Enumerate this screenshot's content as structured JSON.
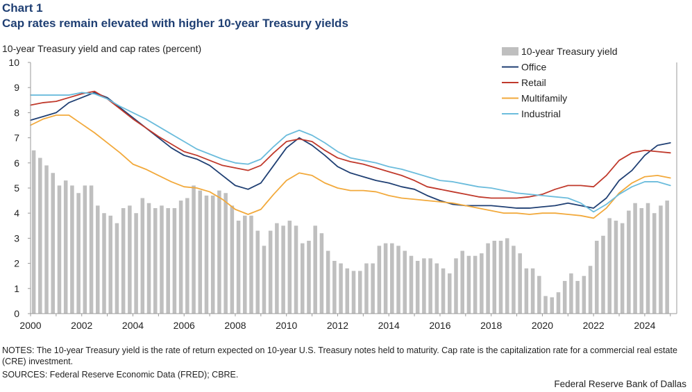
{
  "header": {
    "chart_number": "Chart 1",
    "title": "Cap rates remain elevated with higher 10-year Treasury yields"
  },
  "footer": {
    "notes": "NOTES: The 10-year Treasury yield is the rate of return expected on 10-year U.S. Treasury notes held to maturity. Cap rate is the capitalization rate for a commercial real estate (CRE) investment.",
    "sources": "SOURCES: Federal Reserve Economic Data (FRED); CBRE.",
    "credit": "Federal Reserve Bank of Dallas"
  },
  "chart_data": {
    "type": "bar",
    "title": "Cap rates remain elevated with higher 10-year Treasury yields",
    "ylabel": "10-year Treasury yield and cap rates (percent)",
    "xlabel": "",
    "xlim": [
      2000,
      2025.25
    ],
    "ylim": [
      0,
      10
    ],
    "x_ticks": [
      "2000",
      "2002",
      "2004",
      "2006",
      "2008",
      "2010",
      "2012",
      "2014",
      "2016",
      "2018",
      "2020",
      "2022",
      "2024"
    ],
    "y_ticks": [
      "0",
      "1",
      "2",
      "3",
      "4",
      "5",
      "6",
      "7",
      "8",
      "9",
      "10"
    ],
    "legend_position": "top-right",
    "bars": {
      "name": "10-year Treasury yield",
      "color": "#bfbfbf",
      "start": 2000.0,
      "step": 0.25,
      "values": [
        6.5,
        6.2,
        5.9,
        5.6,
        5.1,
        5.3,
        5.1,
        4.8,
        5.1,
        5.1,
        4.3,
        4.0,
        3.9,
        3.6,
        4.2,
        4.3,
        4.0,
        4.6,
        4.4,
        4.2,
        4.3,
        4.2,
        4.2,
        4.5,
        4.6,
        5.1,
        4.9,
        4.7,
        4.7,
        4.9,
        4.8,
        4.3,
        3.7,
        3.9,
        3.9,
        3.3,
        2.7,
        3.3,
        3.6,
        3.5,
        3.7,
        3.5,
        2.8,
        2.9,
        3.5,
        3.2,
        2.5,
        2.1,
        2.0,
        1.8,
        1.7,
        1.7,
        2.0,
        2.0,
        2.7,
        2.8,
        2.8,
        2.7,
        2.5,
        2.3,
        2.1,
        2.2,
        2.2,
        2.0,
        1.8,
        1.6,
        2.2,
        2.5,
        2.3,
        2.3,
        2.4,
        2.8,
        2.9,
        2.9,
        3.0,
        2.7,
        2.4,
        1.8,
        1.8,
        1.5,
        0.7,
        0.65,
        0.85,
        1.3,
        1.6,
        1.3,
        1.5,
        1.9,
        2.9,
        3.1,
        3.8,
        3.7,
        3.6,
        4.1,
        4.4,
        4.2,
        4.4,
        4.0,
        4.3,
        4.5
      ]
    },
    "series": [
      {
        "name": "Office",
        "color": "#1f3f73",
        "points": [
          [
            2000,
            7.7
          ],
          [
            2000.5,
            7.85
          ],
          [
            2001,
            8.0
          ],
          [
            2001.5,
            8.4
          ],
          [
            2002,
            8.6
          ],
          [
            2002.5,
            8.8
          ],
          [
            2003,
            8.6
          ],
          [
            2003.5,
            8.2
          ],
          [
            2004,
            7.8
          ],
          [
            2004.5,
            7.4
          ],
          [
            2005,
            7.0
          ],
          [
            2005.5,
            6.6
          ],
          [
            2006,
            6.3
          ],
          [
            2006.5,
            6.15
          ],
          [
            2007,
            5.9
          ],
          [
            2007.5,
            5.5
          ],
          [
            2008,
            5.1
          ],
          [
            2008.5,
            4.95
          ],
          [
            2009,
            5.2
          ],
          [
            2009.5,
            5.9
          ],
          [
            2010,
            6.6
          ],
          [
            2010.5,
            7.0
          ],
          [
            2011,
            6.7
          ],
          [
            2011.5,
            6.3
          ],
          [
            2012,
            5.85
          ],
          [
            2012.5,
            5.6
          ],
          [
            2013,
            5.45
          ],
          [
            2013.5,
            5.3
          ],
          [
            2014,
            5.2
          ],
          [
            2014.5,
            5.05
          ],
          [
            2015,
            4.95
          ],
          [
            2015.5,
            4.7
          ],
          [
            2016,
            4.5
          ],
          [
            2016.5,
            4.35
          ],
          [
            2017,
            4.3
          ],
          [
            2017.5,
            4.3
          ],
          [
            2018,
            4.3
          ],
          [
            2018.5,
            4.25
          ],
          [
            2019,
            4.2
          ],
          [
            2019.5,
            4.2
          ],
          [
            2020,
            4.25
          ],
          [
            2020.5,
            4.3
          ],
          [
            2021,
            4.4
          ],
          [
            2021.5,
            4.3
          ],
          [
            2022,
            4.2
          ],
          [
            2022.5,
            4.6
          ],
          [
            2023,
            5.3
          ],
          [
            2023.5,
            5.7
          ],
          [
            2024,
            6.3
          ],
          [
            2024.5,
            6.7
          ],
          [
            2025,
            6.8
          ]
        ]
      },
      {
        "name": "Retail",
        "color": "#c0392b",
        "points": [
          [
            2000,
            8.3
          ],
          [
            2000.5,
            8.4
          ],
          [
            2001,
            8.45
          ],
          [
            2001.5,
            8.6
          ],
          [
            2002,
            8.75
          ],
          [
            2002.5,
            8.85
          ],
          [
            2003,
            8.55
          ],
          [
            2003.5,
            8.15
          ],
          [
            2004,
            7.75
          ],
          [
            2004.5,
            7.4
          ],
          [
            2005,
            7.05
          ],
          [
            2005.5,
            6.75
          ],
          [
            2006,
            6.45
          ],
          [
            2006.5,
            6.3
          ],
          [
            2007,
            6.1
          ],
          [
            2007.5,
            5.9
          ],
          [
            2008,
            5.8
          ],
          [
            2008.5,
            5.7
          ],
          [
            2009,
            5.9
          ],
          [
            2009.5,
            6.4
          ],
          [
            2010,
            6.85
          ],
          [
            2010.5,
            6.95
          ],
          [
            2011,
            6.85
          ],
          [
            2011.5,
            6.5
          ],
          [
            2012,
            6.2
          ],
          [
            2012.5,
            6.05
          ],
          [
            2013,
            5.95
          ],
          [
            2013.5,
            5.8
          ],
          [
            2014,
            5.65
          ],
          [
            2014.5,
            5.5
          ],
          [
            2015,
            5.3
          ],
          [
            2015.5,
            5.05
          ],
          [
            2016,
            4.95
          ],
          [
            2016.5,
            4.85
          ],
          [
            2017,
            4.75
          ],
          [
            2017.5,
            4.65
          ],
          [
            2018,
            4.6
          ],
          [
            2018.5,
            4.6
          ],
          [
            2019,
            4.6
          ],
          [
            2019.5,
            4.65
          ],
          [
            2020,
            4.75
          ],
          [
            2020.5,
            4.95
          ],
          [
            2021,
            5.1
          ],
          [
            2021.5,
            5.1
          ],
          [
            2022,
            5.05
          ],
          [
            2022.5,
            5.5
          ],
          [
            2023,
            6.1
          ],
          [
            2023.5,
            6.4
          ],
          [
            2024,
            6.5
          ],
          [
            2024.5,
            6.45
          ],
          [
            2025,
            6.4
          ]
        ]
      },
      {
        "name": "Multifamily",
        "color": "#f2a93b",
        "points": [
          [
            2000,
            7.5
          ],
          [
            2000.5,
            7.75
          ],
          [
            2001,
            7.9
          ],
          [
            2001.5,
            7.9
          ],
          [
            2002,
            7.55
          ],
          [
            2002.5,
            7.2
          ],
          [
            2003,
            6.8
          ],
          [
            2003.5,
            6.4
          ],
          [
            2004,
            5.95
          ],
          [
            2004.5,
            5.75
          ],
          [
            2005,
            5.5
          ],
          [
            2005.5,
            5.25
          ],
          [
            2006,
            5.05
          ],
          [
            2006.5,
            5.0
          ],
          [
            2007,
            4.85
          ],
          [
            2007.5,
            4.55
          ],
          [
            2008,
            4.15
          ],
          [
            2008.5,
            3.95
          ],
          [
            2009,
            4.15
          ],
          [
            2009.5,
            4.75
          ],
          [
            2010,
            5.3
          ],
          [
            2010.5,
            5.6
          ],
          [
            2011,
            5.5
          ],
          [
            2011.5,
            5.2
          ],
          [
            2012,
            5.0
          ],
          [
            2012.5,
            4.9
          ],
          [
            2013,
            4.9
          ],
          [
            2013.5,
            4.85
          ],
          [
            2014,
            4.7
          ],
          [
            2014.5,
            4.6
          ],
          [
            2015,
            4.55
          ],
          [
            2015.5,
            4.5
          ],
          [
            2016,
            4.45
          ],
          [
            2016.5,
            4.4
          ],
          [
            2017,
            4.3
          ],
          [
            2017.5,
            4.2
          ],
          [
            2018,
            4.1
          ],
          [
            2018.5,
            4.0
          ],
          [
            2019,
            4.0
          ],
          [
            2019.5,
            3.95
          ],
          [
            2020,
            4.0
          ],
          [
            2020.5,
            4.0
          ],
          [
            2021,
            3.95
          ],
          [
            2021.5,
            3.9
          ],
          [
            2022,
            3.8
          ],
          [
            2022.5,
            4.2
          ],
          [
            2023,
            4.8
          ],
          [
            2023.5,
            5.2
          ],
          [
            2024,
            5.45
          ],
          [
            2024.5,
            5.5
          ],
          [
            2025,
            5.4
          ]
        ]
      },
      {
        "name": "Industrial",
        "color": "#6bbcdc",
        "points": [
          [
            2000,
            8.7
          ],
          [
            2000.5,
            8.7
          ],
          [
            2001,
            8.7
          ],
          [
            2001.5,
            8.7
          ],
          [
            2002,
            8.8
          ],
          [
            2002.5,
            8.75
          ],
          [
            2003,
            8.55
          ],
          [
            2003.5,
            8.25
          ],
          [
            2004,
            8.0
          ],
          [
            2004.5,
            7.75
          ],
          [
            2005,
            7.45
          ],
          [
            2005.5,
            7.15
          ],
          [
            2006,
            6.85
          ],
          [
            2006.5,
            6.55
          ],
          [
            2007,
            6.35
          ],
          [
            2007.5,
            6.15
          ],
          [
            2008,
            6.0
          ],
          [
            2008.5,
            5.95
          ],
          [
            2009,
            6.15
          ],
          [
            2009.5,
            6.65
          ],
          [
            2010,
            7.1
          ],
          [
            2010.5,
            7.3
          ],
          [
            2011,
            7.1
          ],
          [
            2011.5,
            6.8
          ],
          [
            2012,
            6.45
          ],
          [
            2012.5,
            6.2
          ],
          [
            2013,
            6.1
          ],
          [
            2013.5,
            6.0
          ],
          [
            2014,
            5.85
          ],
          [
            2014.5,
            5.75
          ],
          [
            2015,
            5.6
          ],
          [
            2015.5,
            5.45
          ],
          [
            2016,
            5.3
          ],
          [
            2016.5,
            5.25
          ],
          [
            2017,
            5.15
          ],
          [
            2017.5,
            5.05
          ],
          [
            2018,
            5.0
          ],
          [
            2018.5,
            4.9
          ],
          [
            2019,
            4.8
          ],
          [
            2019.5,
            4.75
          ],
          [
            2020,
            4.7
          ],
          [
            2020.5,
            4.65
          ],
          [
            2021,
            4.6
          ],
          [
            2021.5,
            4.4
          ],
          [
            2022,
            4.05
          ],
          [
            2022.5,
            4.35
          ],
          [
            2023,
            4.75
          ],
          [
            2023.5,
            5.05
          ],
          [
            2024,
            5.25
          ],
          [
            2024.5,
            5.25
          ],
          [
            2025,
            5.1
          ]
        ]
      }
    ]
  }
}
